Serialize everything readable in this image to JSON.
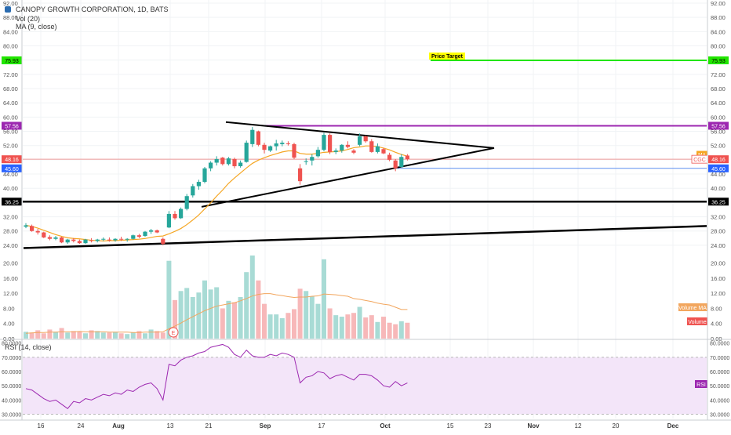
{
  "header": {
    "title": "CANOPY GROWTH CORPORATION, 1D, BATS",
    "vol_label": "Vol (20)",
    "ma_label": "MA (9, close)",
    "rsi_label": "RSI (14, close)"
  },
  "chart_data": {
    "type": "candlestick",
    "price_axis": {
      "ticks": [
        "92.00",
        "88.00",
        "84.00",
        "80.00",
        "76.00",
        "72.00",
        "68.00",
        "64.00",
        "60.00",
        "56.00",
        "52.00",
        "48.00",
        "44.00",
        "40.00",
        "36.00",
        "32.00",
        "28.00",
        "24.00"
      ],
      "range": [
        22,
        92
      ]
    },
    "volume_axis": {
      "ticks": [
        "20.00",
        "16.00",
        "12.00",
        "8.00",
        "4.00",
        "0.00"
      ],
      "range": [
        0,
        22
      ]
    },
    "rsi_axis": {
      "ticks": [
        "80.0000",
        "70.0000",
        "60.0000",
        "50.0000",
        "40.0000",
        "30.0000"
      ],
      "range": [
        27,
        82
      ],
      "band": [
        30,
        70
      ]
    },
    "x_axis": {
      "labels": [
        "16",
        "24",
        "Aug",
        "13",
        "21",
        "Sep",
        "17",
        "Oct",
        "15",
        "23",
        "Nov",
        "12",
        "20",
        "Dec"
      ]
    },
    "price_tags": [
      {
        "value": 75.93,
        "label": "75.93",
        "color": "#22e600"
      },
      {
        "value": 57.56,
        "label": "57.56",
        "color": "#9c27b0"
      },
      {
        "value": 48.16,
        "label": "48.16",
        "color": "#ef5350"
      },
      {
        "value": 45.6,
        "label": "45.60",
        "color": "#2962ff"
      },
      {
        "value": 36.25,
        "label": "36.25",
        "color": "#000000"
      }
    ],
    "series_tags": [
      {
        "label": "MA",
        "color": "#f5a623"
      },
      {
        "label": "CGC",
        "color": "#ef5350"
      }
    ],
    "annotations": {
      "price_target_label": "Price Target",
      "price_target_value": 75.93,
      "volume_ma_label": "Volume MA",
      "volume_label": "Volume",
      "rsi_label": "RSI",
      "earnings_marker": "E"
    },
    "candles": [
      {
        "o": 29.2,
        "h": 30.2,
        "l": 28.8,
        "c": 29.6
      },
      {
        "o": 29.4,
        "h": 29.8,
        "l": 27.8,
        "c": 28.0
      },
      {
        "o": 28.0,
        "h": 28.6,
        "l": 27.0,
        "c": 27.6
      },
      {
        "o": 27.6,
        "h": 27.8,
        "l": 26.0,
        "c": 26.2
      },
      {
        "o": 26.3,
        "h": 26.8,
        "l": 25.4,
        "c": 25.8
      },
      {
        "o": 25.8,
        "h": 26.6,
        "l": 25.4,
        "c": 26.2
      },
      {
        "o": 26.2,
        "h": 26.4,
        "l": 24.6,
        "c": 24.8
      },
      {
        "o": 24.8,
        "h": 25.8,
        "l": 24.4,
        "c": 25.6
      },
      {
        "o": 25.6,
        "h": 26.0,
        "l": 24.8,
        "c": 25.2
      },
      {
        "o": 25.2,
        "h": 25.6,
        "l": 24.4,
        "c": 24.6
      },
      {
        "o": 24.6,
        "h": 25.8,
        "l": 24.4,
        "c": 25.6
      },
      {
        "o": 25.4,
        "h": 26.0,
        "l": 24.8,
        "c": 25.2
      },
      {
        "o": 25.2,
        "h": 25.8,
        "l": 24.8,
        "c": 25.6
      },
      {
        "o": 25.6,
        "h": 26.2,
        "l": 25.2,
        "c": 25.8
      },
      {
        "o": 25.6,
        "h": 26.2,
        "l": 25.0,
        "c": 25.4
      },
      {
        "o": 25.4,
        "h": 26.0,
        "l": 25.0,
        "c": 25.8
      },
      {
        "o": 25.8,
        "h": 26.4,
        "l": 25.2,
        "c": 25.6
      },
      {
        "o": 25.6,
        "h": 26.0,
        "l": 25.0,
        "c": 25.8
      },
      {
        "o": 25.8,
        "h": 27.0,
        "l": 25.6,
        "c": 26.8
      },
      {
        "o": 26.8,
        "h": 27.2,
        "l": 26.0,
        "c": 26.4
      },
      {
        "o": 26.6,
        "h": 28.0,
        "l": 26.4,
        "c": 27.8
      },
      {
        "o": 27.8,
        "h": 28.6,
        "l": 27.2,
        "c": 28.2
      },
      {
        "o": 28.2,
        "h": 28.4,
        "l": 27.4,
        "c": 27.6
      },
      {
        "o": 25.8,
        "h": 26.2,
        "l": 24.0,
        "c": 24.4
      },
      {
        "o": 29.0,
        "h": 33.6,
        "l": 28.8,
        "c": 32.8
      },
      {
        "o": 32.8,
        "h": 33.6,
        "l": 31.2,
        "c": 31.6
      },
      {
        "o": 31.6,
        "h": 34.6,
        "l": 31.4,
        "c": 34.2
      },
      {
        "o": 34.2,
        "h": 38.4,
        "l": 33.8,
        "c": 37.8
      },
      {
        "o": 38.0,
        "h": 41.2,
        "l": 37.4,
        "c": 40.6
      },
      {
        "o": 40.6,
        "h": 42.4,
        "l": 39.6,
        "c": 41.8
      },
      {
        "o": 41.8,
        "h": 46.0,
        "l": 41.4,
        "c": 45.6
      },
      {
        "o": 45.6,
        "h": 47.6,
        "l": 44.8,
        "c": 47.2
      },
      {
        "o": 47.2,
        "h": 49.0,
        "l": 46.4,
        "c": 48.2
      },
      {
        "o": 48.6,
        "h": 48.8,
        "l": 46.4,
        "c": 46.8
      },
      {
        "o": 46.8,
        "h": 48.8,
        "l": 46.4,
        "c": 48.4
      },
      {
        "o": 48.2,
        "h": 48.6,
        "l": 45.6,
        "c": 46.2
      },
      {
        "o": 46.2,
        "h": 47.8,
        "l": 45.8,
        "c": 47.2
      },
      {
        "o": 47.4,
        "h": 53.4,
        "l": 47.2,
        "c": 52.8
      },
      {
        "o": 52.4,
        "h": 57.2,
        "l": 51.6,
        "c": 56.4
      },
      {
        "o": 56.0,
        "h": 56.2,
        "l": 51.8,
        "c": 52.2
      },
      {
        "o": 52.2,
        "h": 52.8,
        "l": 49.8,
        "c": 50.8
      },
      {
        "o": 50.6,
        "h": 52.0,
        "l": 50.2,
        "c": 51.8
      },
      {
        "o": 51.8,
        "h": 53.6,
        "l": 50.6,
        "c": 52.6
      },
      {
        "o": 52.4,
        "h": 53.4,
        "l": 51.8,
        "c": 52.8
      },
      {
        "o": 52.6,
        "h": 53.2,
        "l": 52.0,
        "c": 52.4
      },
      {
        "o": 52.4,
        "h": 52.8,
        "l": 48.2,
        "c": 48.6
      },
      {
        "o": 45.6,
        "h": 46.8,
        "l": 41.0,
        "c": 42.0
      },
      {
        "o": 47.6,
        "h": 48.4,
        "l": 46.6,
        "c": 47.6
      },
      {
        "o": 47.8,
        "h": 49.6,
        "l": 46.4,
        "c": 48.8
      },
      {
        "o": 49.0,
        "h": 51.6,
        "l": 48.6,
        "c": 50.8
      },
      {
        "o": 50.8,
        "h": 55.6,
        "l": 50.4,
        "c": 55.0
      },
      {
        "o": 55.0,
        "h": 55.4,
        "l": 49.6,
        "c": 50.2
      },
      {
        "o": 50.2,
        "h": 51.2,
        "l": 49.6,
        "c": 50.6
      },
      {
        "o": 50.6,
        "h": 52.4,
        "l": 50.0,
        "c": 52.2
      },
      {
        "o": 52.2,
        "h": 53.2,
        "l": 51.2,
        "c": 51.6
      },
      {
        "o": 50.6,
        "h": 51.0,
        "l": 49.6,
        "c": 50.0
      },
      {
        "o": 52.2,
        "h": 55.4,
        "l": 51.8,
        "c": 54.6
      },
      {
        "o": 54.6,
        "h": 54.8,
        "l": 52.8,
        "c": 53.2
      },
      {
        "o": 53.2,
        "h": 53.8,
        "l": 50.0,
        "c": 50.2
      },
      {
        "o": 50.2,
        "h": 52.6,
        "l": 49.8,
        "c": 51.8
      },
      {
        "o": 51.0,
        "h": 51.4,
        "l": 49.6,
        "c": 49.8
      },
      {
        "o": 49.4,
        "h": 50.0,
        "l": 47.6,
        "c": 48.0
      },
      {
        "o": 47.8,
        "h": 48.2,
        "l": 44.8,
        "c": 45.6
      },
      {
        "o": 46.0,
        "h": 49.6,
        "l": 45.8,
        "c": 48.8
      },
      {
        "o": 49.2,
        "h": 49.6,
        "l": 47.8,
        "c": 48.2
      }
    ],
    "volume": [
      1.8,
      1.6,
      2.2,
      1.4,
      2.4,
      1.8,
      2.8,
      1.6,
      2.0,
      1.8,
      1.4,
      2.2,
      2.0,
      1.6,
      1.6,
      1.8,
      1.4,
      1.2,
      1.6,
      2.0,
      1.4,
      2.4,
      2.0,
      1.6,
      20.6,
      10.2,
      12.6,
      13.4,
      11.0,
      12.2,
      15.4,
      13.0,
      13.6,
      8.0,
      10.0,
      9.6,
      11.0,
      17.6,
      22.0,
      15.4,
      9.2,
      6.4,
      6.4,
      5.4,
      6.8,
      7.8,
      13.2,
      12.6,
      11.2,
      9.2,
      21.0,
      8.0,
      6.2,
      5.8,
      6.4,
      6.8,
      8.4,
      5.6,
      6.2,
      4.4,
      5.8,
      4.2,
      3.8,
      4.6,
      4.2
    ],
    "volume_ma": [
      1.4,
      1.5,
      1.6,
      1.6,
      1.7,
      1.7,
      1.8,
      1.8,
      1.8,
      1.9,
      1.8,
      1.8,
      1.8,
      1.8,
      1.7,
      1.7,
      1.7,
      1.7,
      1.6,
      1.6,
      1.7,
      1.7,
      1.7,
      1.8,
      2.6,
      3.3,
      4.1,
      5.0,
      5.8,
      6.6,
      7.4,
      8.0,
      8.6,
      8.9,
      9.2,
      9.5,
      10.0,
      10.6,
      11.3,
      11.7,
      11.9,
      11.9,
      11.6,
      11.4,
      11.1,
      10.9,
      11.0,
      11.0,
      11.2,
      11.3,
      11.8,
      11.7,
      11.6,
      11.4,
      11.2,
      10.6,
      10.4,
      10.1,
      9.8,
      9.4,
      9.1,
      8.9,
      8.3,
      7.7,
      7.7
    ],
    "rsi": [
      48,
      47,
      44,
      41,
      39,
      40,
      37,
      34,
      39,
      38,
      41,
      40,
      42,
      44,
      43,
      45,
      44,
      47,
      46,
      49,
      51,
      52,
      48,
      40,
      65,
      64,
      68,
      70,
      71,
      73,
      74,
      77,
      78,
      79,
      77,
      72,
      70,
      75,
      71,
      70,
      70,
      72,
      71,
      73,
      72,
      70,
      52,
      56,
      57,
      60,
      59,
      55,
      57,
      58,
      56,
      54,
      58,
      58,
      57,
      54,
      50,
      49,
      53,
      50,
      52
    ],
    "ma": [
      29.6,
      29.3,
      28.8,
      28.2,
      27.6,
      27.0,
      26.5,
      26.1,
      25.9,
      25.8,
      25.6,
      25.4,
      25.3,
      25.2,
      25.3,
      25.3,
      25.4,
      25.5,
      25.6,
      25.7,
      25.9,
      26.2,
      26.5,
      26.6,
      27.2,
      27.9,
      28.7,
      29.8,
      31.1,
      32.5,
      34.2,
      35.9,
      37.8,
      39.5,
      41.4,
      42.9,
      44.3,
      45.7,
      47.0,
      47.9,
      48.6,
      49.2,
      49.7,
      50.2,
      50.5,
      50.5,
      49.8,
      49.6,
      49.6,
      49.8,
      50.1,
      50.2,
      50.3,
      50.5,
      50.9,
      51.4,
      51.6,
      51.9,
      51.9,
      51.7,
      51.3,
      50.8,
      50.1,
      49.5,
      49.0
    ]
  },
  "colors": {
    "up": "#26a69a",
    "down": "#ef5350",
    "vol_up": "#a8dbd5",
    "vol_down": "#f7b8b9",
    "ma": "#f5a623",
    "vol_ma": "#f2a65e",
    "rsi_line": "#9c27b0",
    "rsi_band": "#f3e5f9"
  }
}
